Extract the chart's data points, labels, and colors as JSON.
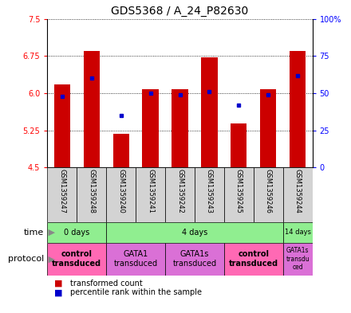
{
  "title": "GDS5368 / A_24_P82630",
  "samples": [
    "GSM1359247",
    "GSM1359248",
    "GSM1359240",
    "GSM1359241",
    "GSM1359242",
    "GSM1359243",
    "GSM1359245",
    "GSM1359246",
    "GSM1359244"
  ],
  "transformed_counts": [
    6.18,
    6.85,
    5.18,
    6.08,
    6.08,
    6.72,
    5.38,
    6.08,
    6.85
  ],
  "percentile_ranks": [
    48,
    60,
    35,
    50,
    49,
    51,
    42,
    49,
    62
  ],
  "y_min": 4.5,
  "y_max": 7.5,
  "y_ticks": [
    4.5,
    5.25,
    6.0,
    6.75,
    7.5
  ],
  "right_y_ticks": [
    0,
    25,
    50,
    75,
    100
  ],
  "right_y_labels": [
    "0",
    "25",
    "50",
    "75",
    "100%"
  ],
  "time_groups": [
    {
      "label": "0 days",
      "start": 0,
      "end": 2
    },
    {
      "label": "4 days",
      "start": 2,
      "end": 8
    },
    {
      "label": "14 days",
      "start": 8,
      "end": 9
    }
  ],
  "protocol_groups": [
    {
      "label": "control\ntransduced",
      "start": 0,
      "end": 2,
      "bold": true,
      "pink": true
    },
    {
      "label": "GATA1\ntransduced",
      "start": 2,
      "end": 4,
      "bold": false,
      "pink": false
    },
    {
      "label": "GATA1s\ntransduced",
      "start": 4,
      "end": 6,
      "bold": false,
      "pink": false
    },
    {
      "label": "control\ntransduced",
      "start": 6,
      "end": 8,
      "bold": true,
      "pink": true
    },
    {
      "label": "GATA1s\ntransdu\nced",
      "start": 8,
      "end": 9,
      "bold": false,
      "pink": false
    }
  ],
  "bar_color": "#CC0000",
  "dot_color": "#0000CC",
  "bar_bottom": 4.5,
  "green_color": "#90EE90",
  "pink_color": "#FF69B4",
  "purple_color": "#DA70D6",
  "gray_cell_color": "#D3D3D3",
  "title_fontsize": 10,
  "tick_fontsize": 7,
  "sample_fontsize": 6,
  "row_fontsize": 7,
  "legend_fontsize": 7
}
